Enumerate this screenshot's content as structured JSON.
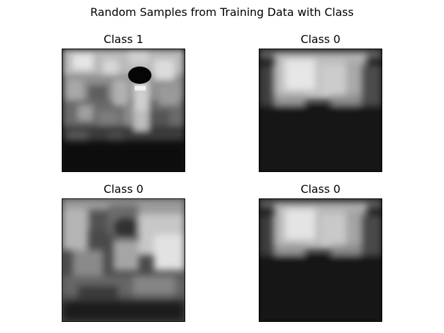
{
  "figure": {
    "title": "Random Samples from Training Data with Class"
  },
  "panels": [
    {
      "title": "Class 1",
      "image_name": "training-sample-1"
    },
    {
      "title": "Class 0",
      "image_name": "training-sample-2"
    },
    {
      "title": "Class 0",
      "image_name": "training-sample-3"
    },
    {
      "title": "Class 0",
      "image_name": "training-sample-4"
    }
  ]
}
